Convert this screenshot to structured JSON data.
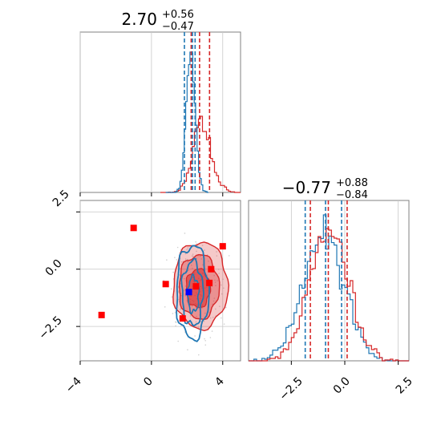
{
  "colors": {
    "red": "#d62728",
    "blue": "#1f77b4",
    "marker_red": "#ff0000",
    "marker_blue": "#0000ff",
    "grid": "#c8c8c8",
    "scatter": "#b0b0b0"
  },
  "chart_data": [
    {
      "type": "histogram",
      "panel": "top-left",
      "parameter": "x",
      "title": {
        "median": "2.70",
        "upper": "+0.56",
        "lower": "−0.47"
      },
      "xlim": [
        -4,
        5
      ],
      "grid": true,
      "series": [
        {
          "color": "red",
          "median": 2.7,
          "quantiles": [
            2.23,
            3.26
          ]
        },
        {
          "color": "blue",
          "median": 2.3,
          "quantiles": [
            1.85,
            2.45
          ]
        }
      ]
    },
    {
      "type": "histogram",
      "panel": "bottom-right",
      "parameter": "y",
      "title": {
        "median": "−0.77",
        "upper": "+0.88",
        "lower": "−0.84"
      },
      "xlim": [
        -4.5,
        3.0
      ],
      "xticks": [
        "−2.5",
        "0.0",
        "2.5"
      ],
      "grid": true,
      "series": [
        {
          "color": "red",
          "median": -0.77,
          "quantiles": [
            -1.61,
            0.11
          ]
        },
        {
          "color": "blue",
          "median": -0.9,
          "quantiles": [
            -1.85,
            -0.15
          ]
        }
      ]
    },
    {
      "type": "scatter",
      "panel": "bottom-left",
      "xlim": [
        -4,
        5
      ],
      "ylim": [
        -4,
        3
      ],
      "xticks": [
        "−4",
        "0",
        "4"
      ],
      "yticks": [
        "−2.5",
        "0.0",
        "2.5"
      ],
      "grid": true,
      "contours": [
        {
          "color": "red",
          "center": [
            2.75,
            -0.7
          ],
          "filled": true
        },
        {
          "color": "blue",
          "center": [
            2.3,
            -1.0
          ],
          "filled": false
        }
      ],
      "points_red": [
        [
          -1.0,
          1.8
        ],
        [
          -2.8,
          -2.0
        ],
        [
          0.8,
          -0.65
        ],
        [
          4.0,
          1.0
        ],
        [
          3.35,
          0.0
        ],
        [
          3.25,
          -0.6
        ],
        [
          2.5,
          -0.75
        ],
        [
          1.75,
          -2.15
        ]
      ],
      "points_blue": [
        [
          2.1,
          -1.0
        ]
      ]
    }
  ]
}
